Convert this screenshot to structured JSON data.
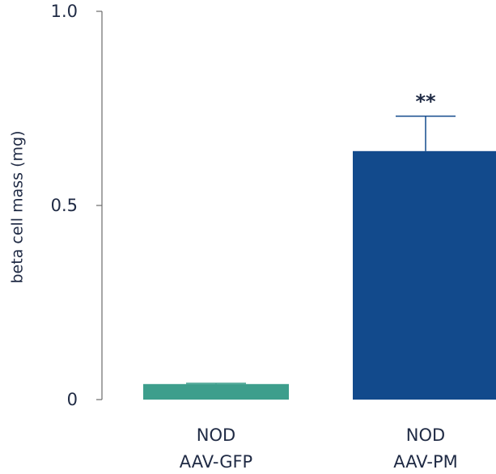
{
  "chart_data": {
    "type": "bar",
    "title": "",
    "xlabel": "",
    "ylabel": "beta cell mass (mg)",
    "ylim": [
      0,
      1.0
    ],
    "y_ticks": [
      {
        "value": 0,
        "label": "0"
      },
      {
        "value": 0.5,
        "label": "0.5"
      },
      {
        "value": 1.0,
        "label": "1.0"
      }
    ],
    "categories": [
      {
        "line1": "NOD",
        "line2": "AAV-GFP"
      },
      {
        "line1": "NOD",
        "line2": "AAV-PM"
      }
    ],
    "values": [
      0.04,
      0.64
    ],
    "errors": [
      0.002,
      0.09
    ],
    "significance": [
      "",
      "**"
    ],
    "colors": [
      "#3d9e8c",
      "#124a8c"
    ],
    "grid": false,
    "legend": "none"
  }
}
